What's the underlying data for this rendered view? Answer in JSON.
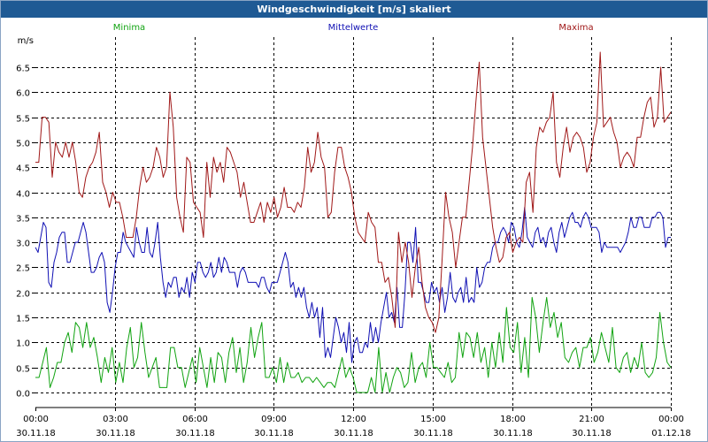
{
  "window": {
    "title": "Windgeschwindigkeit [m/s] skaliert"
  },
  "chart_data": {
    "type": "line",
    "title": "Windgeschwindigkeit [m/s] skaliert",
    "ylabel": "m/s",
    "ylim": [
      -0.3,
      7.1
    ],
    "yticks": [
      "0.0",
      "0.5",
      "1.0",
      "1.5",
      "2.0",
      "2.5",
      "3.0",
      "3.5",
      "4.0",
      "4.5",
      "5.0",
      "5.5",
      "6.0",
      "6.5"
    ],
    "xlim": [
      0,
      24
    ],
    "xticks": [
      {
        "time": "00:00",
        "date": "30.11.18"
      },
      {
        "time": "03:00",
        "date": "30.11.18"
      },
      {
        "time": "06:00",
        "date": "30.11.18"
      },
      {
        "time": "09:00",
        "date": "30.11.18"
      },
      {
        "time": "12:00",
        "date": "30.11.18"
      },
      {
        "time": "15:00",
        "date": "30.11.18"
      },
      {
        "time": "18:00",
        "date": "30.11.18"
      },
      {
        "time": "21:00",
        "date": "30.11.18"
      },
      {
        "time": "00:00",
        "date": "01.12.18"
      }
    ],
    "grid": true,
    "legend_position": "top",
    "series": [
      {
        "name": "Minima",
        "color": "#11a311",
        "values": [
          0.3,
          0.3,
          0.6,
          0.9,
          0.1,
          0.3,
          0.6,
          0.6,
          1.0,
          1.2,
          0.8,
          1.4,
          1.3,
          0.9,
          1.4,
          0.9,
          1.1,
          0.7,
          0.2,
          0.7,
          0.4,
          0.9,
          0.2,
          0.6,
          0.2,
          0.9,
          1.3,
          0.5,
          0.7,
          1.4,
          0.8,
          0.3,
          0.5,
          0.7,
          0.1,
          0.1,
          0.1,
          0.9,
          0.9,
          0.5,
          0.5,
          0.1,
          0.4,
          0.7,
          0.2,
          0.9,
          0.5,
          0.1,
          0.7,
          0.2,
          0.8,
          0.7,
          0.2,
          0.8,
          1.1,
          0.4,
          0.9,
          0.2,
          0.6,
          1.3,
          0.7,
          1.1,
          1.4,
          0.3,
          0.3,
          0.5,
          0.2,
          0.7,
          0.2,
          0.6,
          0.3,
          0.3,
          0.4,
          0.2,
          0.3,
          0.3,
          0.2,
          0.3,
          0.2,
          0.1,
          0.2,
          0.2,
          0.1,
          0.4,
          0.7,
          0.3,
          0.5,
          0.3,
          0.0,
          0.0,
          0.0,
          0.0,
          0.3,
          0.0,
          0.9,
          0.0,
          0.4,
          0.0,
          0.3,
          0.5,
          0.4,
          0.1,
          0.2,
          0.8,
          0.2,
          0.5,
          0.6,
          0.3,
          1.0,
          0.5,
          0.5,
          0.4,
          0.3,
          0.6,
          0.2,
          0.3,
          1.2,
          0.7,
          1.2,
          1.1,
          0.7,
          1.2,
          0.6,
          0.9,
          0.3,
          1.0,
          0.5,
          1.2,
          0.6,
          1.7,
          0.9,
          0.8,
          1.4,
          0.4,
          1.1,
          0.3,
          1.9,
          1.5,
          0.8,
          1.4,
          1.9,
          1.3,
          1.6,
          1.1,
          1.4,
          0.7,
          0.6,
          0.8,
          0.9,
          0.5,
          0.9,
          0.9,
          1.1,
          0.6,
          0.8,
          1.2,
          0.9,
          0.6,
          1.3,
          0.5,
          0.4,
          0.7,
          0.8,
          0.4,
          0.7,
          0.5,
          1.0,
          0.4,
          0.3,
          0.4,
          0.7,
          1.6,
          1.0,
          0.6,
          0.5
        ]
      },
      {
        "name": "Mittelwerte",
        "color": "#1010b4",
        "values": [
          2.9,
          2.8,
          3.1,
          3.4,
          3.3,
          2.2,
          2.1,
          2.6,
          2.8,
          3.1,
          3.2,
          3.2,
          2.6,
          2.6,
          2.8,
          3.0,
          3.0,
          3.2,
          3.4,
          3.2,
          2.8,
          2.4,
          2.4,
          2.5,
          2.7,
          2.8,
          2.6,
          1.8,
          1.6,
          2.0,
          2.5,
          2.8,
          2.8,
          3.2,
          3.0,
          2.9,
          2.8,
          2.7,
          3.3,
          3.0,
          2.8,
          2.8,
          3.3,
          2.8,
          2.7,
          3.0,
          3.4,
          2.7,
          2.2,
          1.9,
          2.2,
          2.1,
          2.3,
          2.3,
          1.9,
          2.1,
          2.0,
          2.3,
          1.9,
          2.4,
          2.2,
          2.6,
          2.6,
          2.4,
          2.3,
          2.4,
          2.6,
          2.3,
          2.4,
          2.7,
          2.4,
          2.7,
          2.6,
          2.4,
          2.4,
          2.4,
          2.1,
          2.4,
          2.5,
          2.4,
          2.2,
          2.2,
          2.2,
          2.2,
          2.1,
          2.3,
          2.3,
          2.1,
          2.0,
          2.2,
          2.2,
          2.2,
          2.4,
          2.6,
          2.8,
          2.6,
          2.1,
          2.2,
          1.9,
          2.1,
          1.9,
          2.1,
          1.7,
          1.5,
          1.8,
          1.5,
          1.7,
          1.1,
          1.7,
          0.7,
          0.9,
          0.7,
          1.1,
          1.5,
          1.3,
          1.0,
          1.2,
          0.8,
          1.4,
          0.6,
          1.0,
          1.1,
          0.8,
          0.8,
          1.0,
          0.9,
          1.4,
          1.0,
          1.3,
          1.0,
          1.4,
          1.7,
          2.0,
          1.5,
          1.6,
          1.4,
          2.1,
          1.3,
          1.3,
          2.0,
          3.0,
          3.0,
          2.6,
          3.3,
          2.2,
          2.2,
          2.0,
          1.8,
          1.8,
          2.2,
          2.0,
          2.1,
          1.8,
          2.1,
          1.6,
          1.9,
          2.4,
          1.9,
          1.8,
          2.0,
          2.1,
          1.8,
          2.3,
          1.8,
          1.9,
          1.8,
          2.5,
          2.1,
          2.2,
          2.5,
          2.6,
          2.6,
          2.9,
          3.0,
          3.0,
          3.2,
          3.3,
          3.2,
          3.0,
          3.4,
          3.3,
          3.0,
          2.9,
          3.2,
          3.7,
          3.1,
          3.0,
          2.9,
          3.2,
          3.3,
          3.0,
          3.1,
          2.9,
          3.2,
          3.3,
          3.0,
          2.8,
          3.2,
          3.4,
          3.1,
          3.3,
          3.5,
          3.6,
          3.4,
          3.4,
          3.3,
          3.5,
          3.6,
          3.5,
          3.3,
          3.3,
          3.3,
          3.2,
          2.8,
          3.0,
          2.9,
          2.9,
          2.9,
          2.9,
          2.9,
          2.8,
          2.9,
          3.0,
          3.2,
          3.5,
          3.3,
          3.3,
          3.5,
          3.5,
          3.3,
          3.3,
          3.3,
          3.5,
          3.5,
          3.6,
          3.6,
          3.5,
          2.9,
          3.1,
          3.1
        ]
      },
      {
        "name": "Maxima",
        "color": "#a01818",
        "values": [
          4.6,
          4.6,
          5.5,
          5.5,
          5.4,
          4.3,
          5.0,
          4.8,
          4.7,
          5.0,
          4.7,
          5.0,
          4.6,
          4.0,
          3.9,
          4.3,
          4.5,
          4.6,
          4.8,
          5.2,
          4.2,
          4.0,
          3.7,
          4.0,
          3.8,
          3.8,
          3.5,
          3.1,
          3.1,
          3.1,
          3.5,
          4.1,
          4.5,
          4.2,
          4.3,
          4.5,
          4.9,
          4.7,
          4.3,
          4.5,
          6.0,
          5.3,
          3.9,
          3.5,
          3.2,
          4.7,
          4.6,
          3.8,
          3.7,
          3.6,
          3.1,
          4.6,
          3.9,
          4.7,
          4.4,
          4.6,
          4.2,
          4.9,
          4.8,
          4.6,
          4.4,
          3.9,
          4.2,
          3.8,
          3.4,
          3.4,
          3.6,
          3.8,
          3.4,
          3.8,
          3.6,
          3.9,
          3.5,
          3.7,
          4.1,
          3.7,
          3.7,
          3.6,
          3.8,
          3.7,
          4.1,
          4.9,
          4.4,
          4.6,
          5.2,
          4.7,
          4.5,
          3.5,
          3.6,
          4.4,
          4.9,
          4.9,
          4.5,
          4.3,
          4.0,
          3.5,
          3.2,
          3.1,
          3.0,
          3.6,
          3.4,
          3.3,
          2.6,
          2.6,
          2.2,
          2.3,
          1.9,
          1.3,
          3.2,
          2.6,
          3.0,
          2.6,
          1.9,
          2.5,
          2.9,
          2.2,
          1.7,
          1.5,
          1.4,
          1.2,
          1.5,
          2.7,
          4.0,
          3.5,
          3.2,
          2.5,
          3.0,
          3.5,
          3.5,
          4.2,
          4.9,
          5.8,
          6.6,
          5.1,
          4.5,
          3.9,
          3.3,
          2.9,
          2.6,
          2.7,
          3.1,
          3.2,
          2.8,
          3.0,
          3.1,
          3.0,
          4.2,
          4.4,
          3.6,
          4.9,
          5.3,
          5.2,
          5.4,
          5.5,
          6.0,
          4.6,
          4.3,
          4.9,
          5.3,
          4.8,
          5.1,
          5.2,
          5.1,
          4.9,
          4.4,
          4.6,
          5.1,
          5.4,
          6.8,
          5.3,
          5.4,
          5.5,
          5.2,
          5.0,
          4.5,
          4.7,
          4.8,
          4.7,
          4.5,
          5.1,
          5.1,
          5.5,
          5.8,
          5.9,
          5.3,
          5.5,
          6.5,
          5.4,
          5.5,
          5.6
        ]
      }
    ]
  }
}
